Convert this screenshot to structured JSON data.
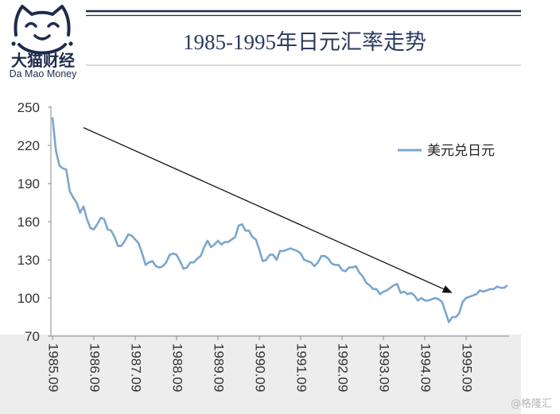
{
  "logo": {
    "name_cn": "大猫财经",
    "name_en": "Da Mao Money",
    "icon": "cat-face-icon"
  },
  "watermark": "@格隆汇",
  "colors": {
    "series": "#7aa6cf",
    "title": "#2b3a5e",
    "logo": "#1f2b4d",
    "arrow": "#111111",
    "band": "#ededed",
    "axis": "#8a8a8a"
  },
  "chart_data": {
    "type": "line",
    "title": "1985-1995年日元汇率走势",
    "xlabel": "",
    "ylabel": "",
    "ylim": [
      70,
      250
    ],
    "yticks": [
      250,
      220,
      190,
      160,
      130,
      100,
      70
    ],
    "xticks": [
      "1985.09",
      "1986.09",
      "1987.09",
      "1988.09",
      "1989.09",
      "1990.09",
      "1991.09",
      "1992.09",
      "1993.09",
      "1994.09",
      "1995.09"
    ],
    "grid": false,
    "legend": "top-right",
    "x": [
      "1985.09",
      "1985.10",
      "1985.11",
      "1985.12",
      "1986.01",
      "1986.02",
      "1986.03",
      "1986.04",
      "1986.05",
      "1986.06",
      "1986.07",
      "1986.08",
      "1986.09",
      "1986.10",
      "1986.11",
      "1986.12",
      "1987.01",
      "1987.02",
      "1987.03",
      "1987.04",
      "1987.05",
      "1987.06",
      "1987.07",
      "1987.08",
      "1987.09",
      "1987.10",
      "1987.11",
      "1987.12",
      "1988.01",
      "1988.02",
      "1988.03",
      "1988.04",
      "1988.05",
      "1988.06",
      "1988.07",
      "1988.08",
      "1988.09",
      "1988.10",
      "1988.11",
      "1988.12",
      "1989.01",
      "1989.02",
      "1989.03",
      "1989.04",
      "1989.05",
      "1989.06",
      "1989.07",
      "1989.08",
      "1989.09",
      "1989.10",
      "1989.11",
      "1989.12",
      "1990.01",
      "1990.02",
      "1990.03",
      "1990.04",
      "1990.05",
      "1990.06",
      "1990.07",
      "1990.08",
      "1990.09",
      "1990.10",
      "1990.11",
      "1990.12",
      "1991.01",
      "1991.02",
      "1991.03",
      "1991.04",
      "1991.05",
      "1991.06",
      "1991.07",
      "1991.08",
      "1991.09",
      "1991.10",
      "1991.11",
      "1991.12",
      "1992.01",
      "1992.02",
      "1992.03",
      "1992.04",
      "1992.05",
      "1992.06",
      "1992.07",
      "1992.08",
      "1992.09",
      "1992.10",
      "1992.11",
      "1992.12",
      "1993.01",
      "1993.02",
      "1993.03",
      "1993.04",
      "1993.05",
      "1993.06",
      "1993.07",
      "1993.08",
      "1993.09",
      "1993.10",
      "1993.11",
      "1993.12",
      "1994.01",
      "1994.02",
      "1994.03",
      "1994.04",
      "1994.05",
      "1994.06",
      "1994.07",
      "1994.08",
      "1994.09",
      "1994.10",
      "1994.11",
      "1994.12",
      "1995.01",
      "1995.02",
      "1995.03",
      "1995.04",
      "1995.05",
      "1995.06",
      "1995.07",
      "1995.08",
      "1995.09",
      "1995.10",
      "1995.11",
      "1995.12",
      "1996.01",
      "1996.02",
      "1996.03",
      "1996.04",
      "1996.05",
      "1996.06",
      "1996.07",
      "1996.08",
      "1996.09"
    ],
    "series": [
      {
        "name": "美元兑日元",
        "values": [
          242,
          216,
          204,
          202,
          201,
          184,
          179,
          175,
          167,
          172,
          162,
          155,
          154,
          158,
          163,
          162,
          154,
          153,
          148,
          141,
          141,
          145,
          150,
          149,
          146,
          143,
          135,
          126,
          128,
          129,
          125,
          124,
          125,
          128,
          134,
          135,
          134,
          129,
          123,
          124,
          128,
          128,
          131,
          133,
          140,
          145,
          140,
          142,
          145,
          142,
          144,
          144,
          146,
          148,
          157,
          158,
          153,
          153,
          148,
          146,
          138,
          129,
          130,
          134,
          134,
          130,
          137,
          137,
          138,
          139,
          138,
          137,
          135,
          130,
          129,
          128,
          125,
          128,
          133,
          133,
          131,
          127,
          126,
          126,
          122,
          121,
          124,
          124,
          125,
          120,
          117,
          112,
          110,
          107,
          107,
          103,
          105,
          106,
          108,
          110,
          111,
          104,
          105,
          103,
          104,
          102,
          98,
          100,
          98,
          98,
          99,
          100,
          99,
          97,
          89,
          81,
          85,
          85,
          88,
          97,
          100,
          101,
          102,
          103,
          106,
          105,
          106,
          107,
          107,
          109,
          108,
          108,
          110
        ]
      }
    ],
    "annotations": [
      {
        "type": "arrow",
        "from": {
          "x": "1986.06",
          "y": 234
        },
        "to": {
          "x": "1995.05",
          "y": 104
        }
      }
    ]
  }
}
